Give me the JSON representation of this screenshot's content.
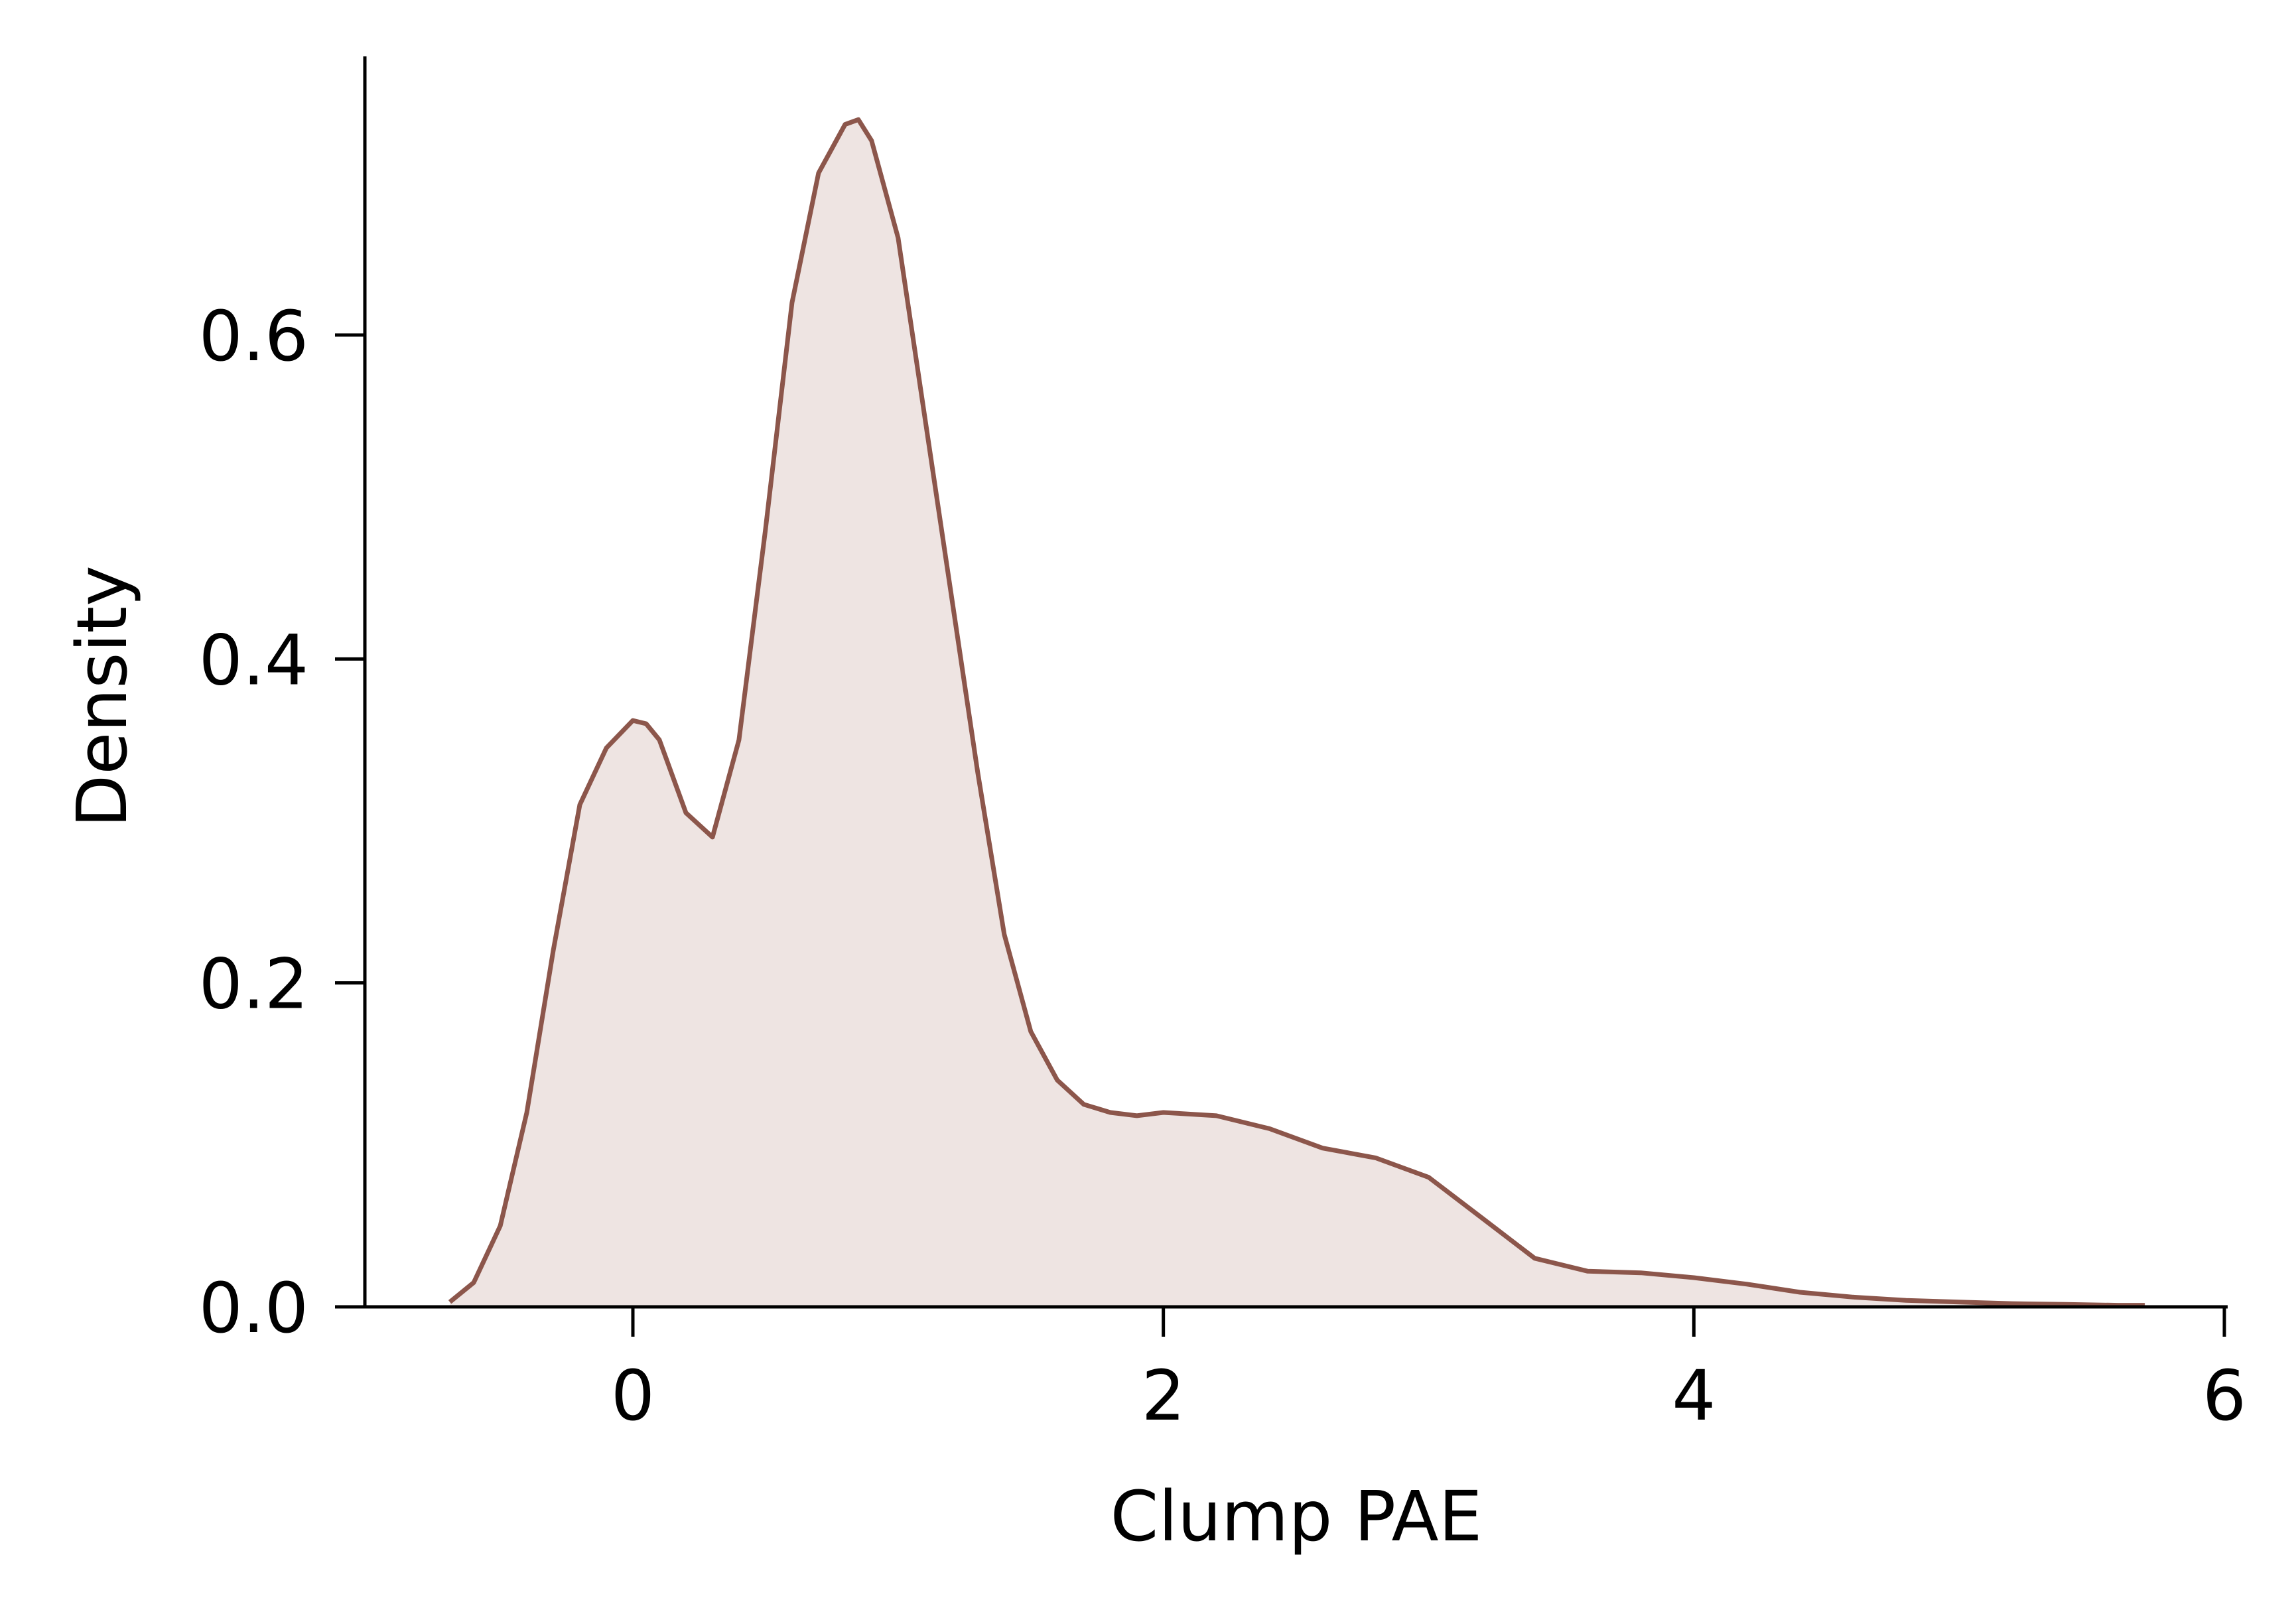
{
  "chart_data": {
    "type": "area",
    "title": "",
    "xlabel": "Clump PAE",
    "ylabel": "Density",
    "xlim": [
      -1.0,
      6.0
    ],
    "ylim": [
      0.0,
      0.77
    ],
    "x_ticks": [
      0,
      2,
      4,
      6
    ],
    "y_ticks": [
      0.0,
      0.2,
      0.4,
      0.6
    ],
    "x_tick_labels": [
      "0",
      "2",
      "4",
      "6"
    ],
    "y_tick_labels": [
      "0.0",
      "0.2",
      "0.4",
      "0.6"
    ],
    "grid": false,
    "colors": {
      "line": "#8c564b",
      "fill": "#eee4e2",
      "axis": "#000000"
    },
    "series": [
      {
        "x": [
          -0.69,
          -0.6,
          -0.5,
          -0.4,
          -0.3,
          -0.2,
          -0.1,
          0.0,
          0.05,
          0.1,
          0.2,
          0.3,
          0.4,
          0.5,
          0.6,
          0.7,
          0.8,
          0.85,
          0.9,
          1.0,
          1.1,
          1.2,
          1.3,
          1.4,
          1.5,
          1.6,
          1.7,
          1.8,
          1.9,
          2.0,
          2.2,
          2.4,
          2.6,
          2.8,
          3.0,
          3.2,
          3.4,
          3.6,
          3.8,
          4.0,
          4.2,
          4.4,
          4.6,
          4.8,
          5.0,
          5.2,
          5.4,
          5.6,
          5.7
        ],
        "y": [
          0.003,
          0.015,
          0.05,
          0.12,
          0.22,
          0.31,
          0.345,
          0.362,
          0.36,
          0.35,
          0.305,
          0.29,
          0.35,
          0.48,
          0.62,
          0.7,
          0.73,
          0.733,
          0.72,
          0.66,
          0.55,
          0.44,
          0.33,
          0.23,
          0.17,
          0.14,
          0.125,
          0.12,
          0.118,
          0.12,
          0.118,
          0.11,
          0.098,
          0.092,
          0.08,
          0.055,
          0.03,
          0.022,
          0.021,
          0.018,
          0.014,
          0.009,
          0.006,
          0.004,
          0.003,
          0.002,
          0.0015,
          0.001,
          0.001
        ]
      }
    ]
  }
}
